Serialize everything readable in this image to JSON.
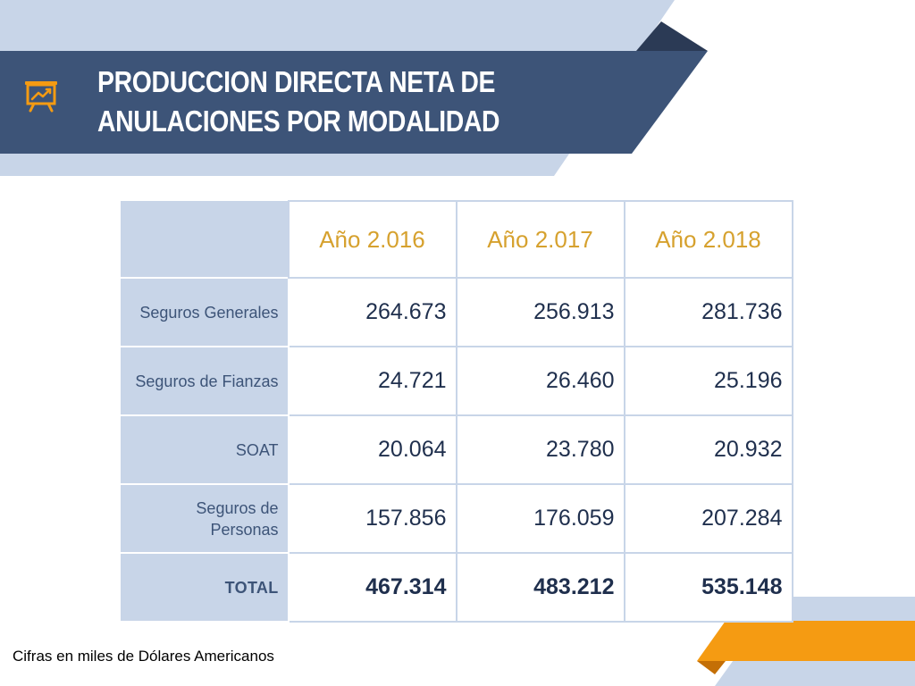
{
  "title": {
    "line1": "PRODUCCION DIRECTA NETA DE",
    "line2": "ANULACIONES POR MODALIDAD"
  },
  "icon": "presentation-chart-icon",
  "colors": {
    "header_band": "#3d5478",
    "light_band": "#c8d5e8",
    "dark_accent": "#2b3a55",
    "year_header_text": "#d6a12e",
    "orange_accent": "#f59b12"
  },
  "table": {
    "columns": [
      "Año 2.016",
      "Año 2.017",
      "Año 2.018"
    ],
    "rows": [
      {
        "label": "Seguros Generales",
        "values": [
          "264.673",
          "256.913",
          "281.736"
        ]
      },
      {
        "label": "Seguros de Fianzas",
        "values": [
          "24.721",
          "26.460",
          "25.196"
        ]
      },
      {
        "label": "SOAT",
        "values": [
          "20.064",
          "23.780",
          "20.932"
        ]
      },
      {
        "label_line1": "Seguros de",
        "label_line2": "Personas",
        "values": [
          "157.856",
          "176.059",
          "207.284"
        ]
      },
      {
        "label": "TOTAL",
        "values": [
          "467.314",
          "483.212",
          "535.148"
        ]
      }
    ]
  },
  "footnote": "Cifras en miles de Dólares Americanos"
}
